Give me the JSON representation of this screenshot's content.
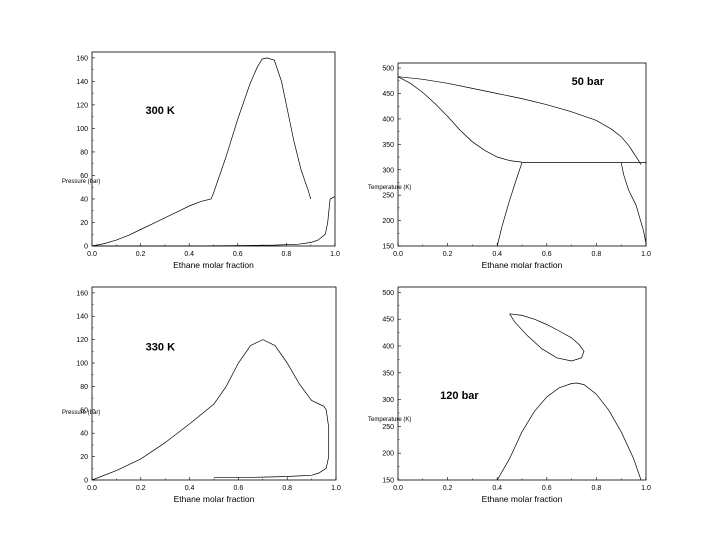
{
  "chart_data": [
    {
      "type": "line",
      "title": "",
      "annotation": "300 K",
      "xlabel": "Ethane molar fraction",
      "ylabel": "Pressure (bar)",
      "xlim": [
        0.0,
        1.0
      ],
      "ylim": [
        0,
        165
      ],
      "xticks": [
        "0.0",
        "0.2",
        "0.4",
        "0.6",
        "0.8",
        "1.0"
      ],
      "yticks": [
        "0",
        "20",
        "40",
        "60",
        "80",
        "100",
        "120",
        "140",
        "160"
      ],
      "series": [
        {
          "x": [
            0.0,
            0.05,
            0.1,
            0.15,
            0.2,
            0.25,
            0.3,
            0.35,
            0.4,
            0.45,
            0.49,
            0.5,
            0.55,
            0.6,
            0.65,
            0.68,
            0.7,
            0.72,
            0.75,
            0.78,
            0.8,
            0.83,
            0.86,
            0.89,
            0.9
          ],
          "y": [
            0,
            2,
            5,
            9,
            14,
            19,
            24,
            29,
            34,
            38,
            40,
            45,
            75,
            108,
            138,
            152,
            159,
            160,
            158,
            140,
            120,
            90,
            65,
            47,
            40
          ]
        },
        {
          "x": [
            0.0,
            0.2,
            0.4,
            0.6,
            0.75,
            0.85,
            0.9,
            0.93,
            0.96,
            0.97,
            0.975,
            0.98,
            1.0
          ],
          "y": [
            0,
            0,
            0,
            0.3,
            0.8,
            1.5,
            3,
            5,
            10,
            20,
            30,
            40,
            42
          ]
        }
      ]
    },
    {
      "type": "line",
      "title": "",
      "annotation": "50 bar",
      "xlabel": "Ethane molar fraction",
      "ylabel": "Temperature (K)",
      "xlim": [
        0.0,
        1.0
      ],
      "ylim": [
        150,
        510
      ],
      "xticks": [
        "0.0",
        "0.2",
        "0.4",
        "0.6",
        "0.8",
        "1.0"
      ],
      "yticks": [
        "150",
        "200",
        "250",
        "300",
        "350",
        "400",
        "450",
        "500"
      ],
      "series": [
        {
          "x": [
            0.0,
            0.1,
            0.2,
            0.3,
            0.4,
            0.5,
            0.6,
            0.7,
            0.8,
            0.86,
            0.9,
            0.93,
            0.95,
            0.97,
            0.98
          ],
          "y": [
            483,
            478,
            470,
            460,
            450,
            440,
            428,
            414,
            397,
            380,
            365,
            348,
            333,
            318,
            310
          ]
        },
        {
          "x": [
            0.0,
            0.05,
            0.1,
            0.15,
            0.2,
            0.25,
            0.3,
            0.35,
            0.4,
            0.45,
            0.5
          ],
          "y": [
            483,
            470,
            452,
            430,
            405,
            378,
            355,
            338,
            325,
            318,
            315
          ]
        },
        {
          "x": [
            0.5,
            0.6,
            0.7,
            0.8,
            0.9,
            1.0
          ],
          "y": [
            314,
            314,
            314,
            314,
            314,
            314
          ]
        },
        {
          "x": [
            0.4,
            0.42,
            0.45,
            0.48,
            0.5
          ],
          "y": [
            150,
            190,
            240,
            285,
            314
          ]
        },
        {
          "x": [
            0.9,
            0.91,
            0.93,
            0.96,
            0.99,
            1.0
          ],
          "y": [
            314,
            290,
            260,
            230,
            180,
            155
          ]
        }
      ]
    },
    {
      "type": "line",
      "title": "",
      "annotation": "330 K",
      "xlabel": "Ethane molar fraction",
      "ylabel": "Pressure (bar)",
      "xlim": [
        0.0,
        1.0
      ],
      "ylim": [
        0,
        165
      ],
      "xticks": [
        "0.0",
        "0.2",
        "0.4",
        "0.6",
        "0.8",
        "1.0"
      ],
      "yticks": [
        "0",
        "20",
        "40",
        "60",
        "80",
        "100",
        "120",
        "140",
        "160"
      ],
      "series": [
        {
          "x": [
            0.0,
            0.1,
            0.2,
            0.3,
            0.4,
            0.5,
            0.55,
            0.6,
            0.65,
            0.7,
            0.75,
            0.8,
            0.85,
            0.9,
            0.93,
            0.95,
            0.96,
            0.97,
            0.97,
            0.96,
            0.93,
            0.9,
            0.85,
            0.8,
            0.7,
            0.6,
            0.5
          ],
          "y": [
            0,
            8,
            18,
            32,
            48,
            65,
            80,
            100,
            115,
            120,
            115,
            100,
            82,
            68,
            65,
            63,
            60,
            45,
            20,
            10,
            6,
            4,
            3.5,
            3,
            2.5,
            2,
            2
          ]
        }
      ]
    },
    {
      "type": "line",
      "title": "",
      "annotation": "120 bar",
      "xlabel": "Ethane molar fraction",
      "ylabel": "Temperature (K)",
      "xlim": [
        0.0,
        1.0
      ],
      "ylim": [
        150,
        510
      ],
      "xticks": [
        "0.0",
        "0.2",
        "0.4",
        "0.6",
        "0.8",
        "1.0"
      ],
      "yticks": [
        "150",
        "200",
        "250",
        "300",
        "350",
        "400",
        "450",
        "500"
      ],
      "series": [
        {
          "x": [
            0.45,
            0.5,
            0.55,
            0.6,
            0.65,
            0.7,
            0.73,
            0.75,
            0.74,
            0.7,
            0.64,
            0.58,
            0.52,
            0.47,
            0.45
          ],
          "y": [
            460,
            457,
            450,
            440,
            428,
            415,
            403,
            390,
            378,
            372,
            378,
            395,
            420,
            445,
            460
          ]
        },
        {
          "x": [
            0.4,
            0.45,
            0.5,
            0.55,
            0.6,
            0.65,
            0.7,
            0.72,
            0.75,
            0.8,
            0.85,
            0.9,
            0.95,
            0.98
          ],
          "y": [
            150,
            190,
            240,
            278,
            305,
            322,
            330,
            331,
            328,
            310,
            280,
            240,
            190,
            150
          ]
        }
      ]
    }
  ]
}
